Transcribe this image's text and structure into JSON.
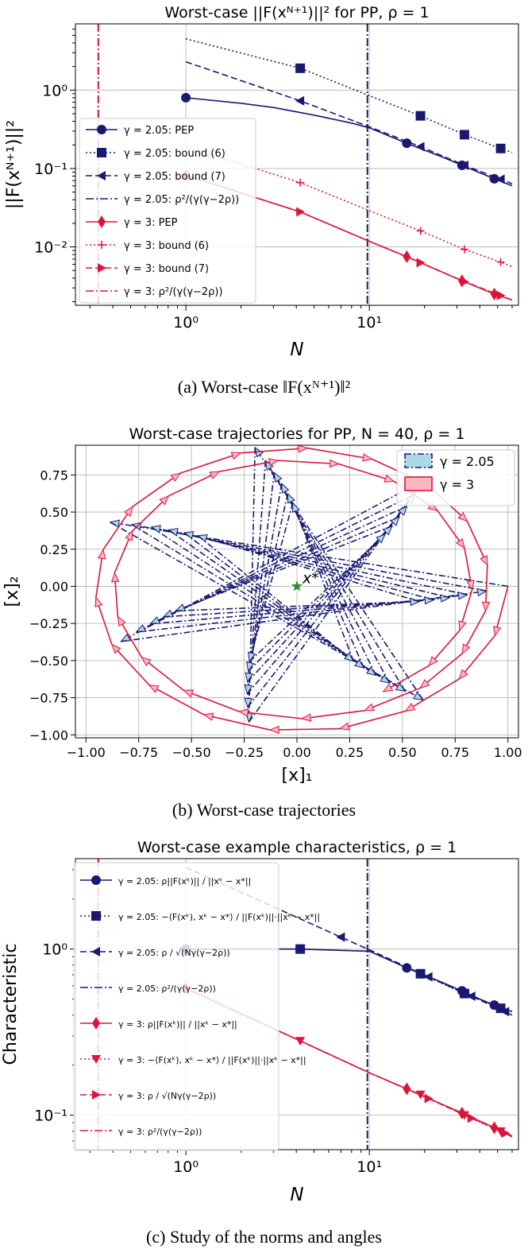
{
  "figures": [
    {
      "caption": "(a) Worst-case ||F(x^{N+1})||^2",
      "caption_display": "(a) Worst-case ‖F(xᴺ⁺¹)‖²",
      "chart_data": {
        "type": "line",
        "title": "Worst-case ||F(x^{N+1})||^2 for PP, ρ = 1",
        "title_display": "Worst-case ||F(xᴺ⁺¹)||² for PP, ρ = 1",
        "xlabel": "N",
        "ylabel": "||F(x^{N+1})||^2",
        "ylabel_display": "||F(xᴺ⁺¹)||²",
        "xscale": "log",
        "yscale": "log",
        "xlim": [
          0.25,
          65
        ],
        "ylim": [
          0.0018,
          7
        ],
        "xticks": [
          {
            "v": 1,
            "label": "10⁰"
          },
          {
            "v": 10,
            "label": "10¹"
          }
        ],
        "yticks": [
          {
            "v": 0.01,
            "label": "10⁻²"
          },
          {
            "v": 0.1,
            "label": "10⁻¹"
          },
          {
            "v": 1,
            "label": "10⁰"
          }
        ],
        "grid": true,
        "legend": "center-left",
        "series": [
          {
            "name": "γ = 2.05: PEP",
            "color": "#191970",
            "dash": "solid",
            "marker": "circle",
            "x": [
              1,
              2,
              3,
              5,
              8,
              10,
              16,
              25,
              32,
              40,
              48,
              60
            ],
            "y": [
              0.8,
              0.68,
              0.6,
              0.48,
              0.38,
              0.33,
              0.21,
              0.14,
              0.11,
              0.088,
              0.074,
              0.06
            ],
            "markers_at": [
              1,
              16,
              32,
              48
            ]
          },
          {
            "name": "γ = 2.05: bound (6)",
            "color": "#191970",
            "dash": "2,3",
            "marker": "square",
            "x": [
              1,
              4.2,
              10,
              19,
              33,
              52,
              60
            ],
            "y": [
              4.5,
              1.9,
              0.85,
              0.47,
              0.27,
              0.18,
              0.16
            ],
            "markers_at": [
              4.2,
              19,
              33,
              52
            ]
          },
          {
            "name": "γ = 2.05: bound (7)",
            "color": "#191970",
            "dash": "8,4",
            "marker": "triangle-left",
            "x": [
              1,
              4.2,
              10,
              19,
              33,
              52,
              60
            ],
            "y": [
              2.3,
              0.73,
              0.34,
              0.19,
              0.11,
              0.073,
              0.064
            ],
            "markers_at": [
              4.2,
              19,
              33,
              52
            ]
          },
          {
            "name": "γ = 3: PEP",
            "color": "#dc143c",
            "dash": "solid",
            "marker": "diamond",
            "x": [
              1,
              4.2,
              10,
              16,
              32,
              48,
              60
            ],
            "y": [
              0.082,
              0.028,
              0.0118,
              0.0075,
              0.0037,
              0.0025,
              0.0021
            ],
            "markers_at": [
              1,
              16,
              32,
              48
            ]
          },
          {
            "name": "γ = 3: bound (6)",
            "color": "#dc143c",
            "dash": "2,3",
            "marker": "plus",
            "x": [
              1,
              4.2,
              10,
              19,
              33,
              52,
              60
            ],
            "y": [
              0.19,
              0.066,
              0.029,
              0.016,
              0.0093,
              0.0064,
              0.0056
            ],
            "markers_at": [
              4.2,
              19,
              33,
              52
            ]
          },
          {
            "name": "γ = 3: bound (7)",
            "color": "#dc143c",
            "dash": "8,4",
            "marker": "triangle-right",
            "x": [
              1,
              4.2,
              10,
              19,
              33,
              52,
              60
            ],
            "y": [
              0.082,
              0.028,
              0.0118,
              0.0063,
              0.0036,
              0.0024,
              0.0021
            ],
            "markers_at": [
              4.2,
              19,
              33,
              52
            ]
          }
        ],
        "vlines": [
          {
            "name": "γ = 2.05: ρ²/(γ(γ−2ρ))",
            "x": 9.76,
            "color": "#191970",
            "dash": "10,3,2,3"
          },
          {
            "name": "γ = 3: ρ²/(γ(γ−2ρ))",
            "x": 0.333,
            "color": "#dc143c",
            "dash": "10,3,2,3"
          }
        ],
        "legend_entries": [
          {
            "label": "γ = 2.05: PEP",
            "color": "#191970",
            "dash": "solid",
            "marker": "circle"
          },
          {
            "label": "γ = 2.05: bound (6)",
            "color": "#191970",
            "dash": "2,3",
            "marker": "square"
          },
          {
            "label": "γ = 2.05: bound (7)",
            "color": "#191970",
            "dash": "8,4",
            "marker": "triangle-left"
          },
          {
            "label": "γ = 2.05: ρ²/(γ(γ−2ρ))",
            "color": "#191970",
            "dash": "10,3,2,3",
            "marker": "none"
          },
          {
            "label": "γ = 3: PEP",
            "color": "#dc143c",
            "dash": "solid",
            "marker": "diamond"
          },
          {
            "label": "γ = 3: bound (6)",
            "color": "#dc143c",
            "dash": "2,3",
            "marker": "plus"
          },
          {
            "label": "γ = 3: bound (7)",
            "color": "#dc143c",
            "dash": "8,4",
            "marker": "triangle-right"
          },
          {
            "label": "γ = 3: ρ²/(γ(γ−2ρ))",
            "color": "#dc143c",
            "dash": "10,3,2,3",
            "marker": "none"
          }
        ]
      }
    },
    {
      "caption": "(b) Worst-case trajectories",
      "caption_display": "(b) Worst-case trajectories",
      "chart_data": {
        "type": "line",
        "title": "Worst-case trajectories for PP, N = 40, ρ = 1",
        "title_display": "Worst-case trajectories for PP, N = 40, ρ = 1",
        "xlabel": "[x]₁",
        "ylabel": "[x]₂",
        "xscale": "linear",
        "yscale": "linear",
        "xlim": [
          -1.05,
          1.05
        ],
        "ylim": [
          -1.02,
          0.95
        ],
        "xticks": [
          {
            "v": -1,
            "label": "−1.00"
          },
          {
            "v": -0.75,
            "label": "−0.75"
          },
          {
            "v": -0.5,
            "label": "−0.50"
          },
          {
            "v": -0.25,
            "label": "−0.25"
          },
          {
            "v": 0,
            "label": "0.00"
          },
          {
            "v": 0.25,
            "label": "0.25"
          },
          {
            "v": 0.5,
            "label": "0.50"
          },
          {
            "v": 0.75,
            "label": "0.75"
          },
          {
            "v": 1,
            "label": "1.00"
          }
        ],
        "yticks": [
          {
            "v": -1,
            "label": "−1.00"
          },
          {
            "v": -0.75,
            "label": "−0.75"
          },
          {
            "v": -0.5,
            "label": "−0.50"
          },
          {
            "v": -0.25,
            "label": "−0.25"
          },
          {
            "v": 0,
            "label": "0.00"
          },
          {
            "v": 0.25,
            "label": "0.25"
          },
          {
            "v": 0.5,
            "label": "0.50"
          },
          {
            "v": 0.75,
            "label": "0.75"
          }
        ],
        "grid": true,
        "legend": "upper-right",
        "optimum": {
          "label": "x*",
          "x": 0,
          "y": 0
        },
        "series": [
          {
            "name": "γ = 2.05",
            "color": "#191970",
            "fill": "#add8e6",
            "dash": "8,3,2,3",
            "start": [
              1.0,
              0.0
            ],
            "radius_decay": 0.985,
            "angle_step_deg": 154,
            "steps": 40
          },
          {
            "name": "γ = 3",
            "color": "#dc143c",
            "fill": "#ffb6c1",
            "dash": "solid",
            "start": [
              1.0,
              0.0
            ],
            "radius_decay": 0.995,
            "angle_step_deg": -19.5,
            "steps": 40
          }
        ]
      }
    },
    {
      "caption": "(c) Study of the norms and angles",
      "caption_display": "(c) Study of the norms and angles",
      "chart_data": {
        "type": "line",
        "title": "Worst-case example characteristics, ρ = 1",
        "title_display": "Worst-case example characteristics, ρ = 1",
        "xlabel": "N",
        "ylabel": "Characteristic",
        "xscale": "log",
        "yscale": "log",
        "xlim": [
          0.25,
          65
        ],
        "ylim": [
          0.062,
          3.5
        ],
        "xticks": [
          {
            "v": 1,
            "label": "10⁰"
          },
          {
            "v": 10,
            "label": "10¹"
          }
        ],
        "yticks": [
          {
            "v": 0.1,
            "label": "10⁻¹"
          },
          {
            "v": 1,
            "label": "10⁰"
          }
        ],
        "grid": true,
        "legend": "center-left",
        "series": [
          {
            "name": "γ = 2.05: ρ||F(xᵏ)|| / ||xᵏ − x*||",
            "color": "#191970",
            "dash": "solid",
            "marker": "circle",
            "x": [
              1,
              4.2,
              10,
              16,
              25,
              32,
              40,
              48,
              60
            ],
            "y": [
              1.0,
              1.0,
              0.97,
              0.77,
              0.63,
              0.56,
              0.5,
              0.46,
              0.42
            ],
            "markers_at": [
              1,
              16,
              32,
              48
            ]
          },
          {
            "name": "γ = 2.05: −⟨F(xᵏ), xᵏ − x*⟩ / (||F(xᵏ)||·||xᵏ − x*||)",
            "color": "#191970",
            "dash": "2,3",
            "marker": "square",
            "x": [
              1,
              4.2,
              10,
              19,
              33,
              52,
              60
            ],
            "y": [
              1.0,
              1.0,
              0.97,
              0.71,
              0.54,
              0.44,
              0.42
            ],
            "markers_at": [
              4.2,
              19,
              33,
              52
            ]
          },
          {
            "name": "γ = 2.05: ρ / √(Nγ(γ−2ρ))",
            "color": "#191970",
            "dash": "8,4",
            "marker": "triangle-left",
            "x": [
              1,
              7,
              10,
              21,
              36,
              55,
              60
            ],
            "y": [
              3.1,
              1.18,
              0.99,
              0.68,
              0.52,
              0.42,
              0.4
            ],
            "markers_at": [
              7,
              21,
              36,
              55
            ]
          },
          {
            "name": "γ = 3: ρ||F(xᵏ)|| / ||xᵏ − x*||",
            "color": "#dc143c",
            "dash": "solid",
            "marker": "diamond",
            "x": [
              1,
              4.2,
              10,
              16,
              32,
              48,
              60
            ],
            "y": [
              0.58,
              0.28,
              0.18,
              0.144,
              0.103,
              0.084,
              0.075
            ],
            "markers_at": [
              1,
              16,
              32,
              48
            ]
          },
          {
            "name": "γ = 3: −⟨F(xᵏ), xᵏ − x*⟩ / (||F(xᵏ)||·||xᵏ − x*||)",
            "color": "#dc143c",
            "dash": "2,3",
            "marker": "triangle-down",
            "x": [
              1,
              4.2,
              10,
              19,
              33,
              52,
              60
            ],
            "y": [
              0.58,
              0.28,
              0.18,
              0.133,
              0.1,
              0.08,
              0.075
            ],
            "markers_at": [
              4.2,
              19,
              33,
              52
            ]
          },
          {
            "name": "γ = 3: ρ / √(Nγ(γ−2ρ))",
            "color": "#dc143c",
            "dash": "8,4",
            "marker": "triangle-right",
            "x": [
              1,
              4.2,
              10,
              21,
              36,
              55,
              60
            ],
            "y": [
              0.58,
              0.28,
              0.18,
              0.126,
              0.096,
              0.078,
              0.074
            ],
            "markers_at": [
              21,
              36,
              55
            ]
          }
        ],
        "vlines": [
          {
            "name": "γ = 2.05: ρ²/(γ(γ−2ρ))",
            "x": 9.76,
            "color": "#191970",
            "dash": "10,3,2,3"
          },
          {
            "name": "γ = 3: ρ²/(γ(γ−2ρ))",
            "x": 0.333,
            "color": "#dc143c",
            "dash": "10,3,2,3"
          }
        ],
        "legend_entries": [
          {
            "label": "γ = 2.05: ρ||F(xᵏ)|| / ||xᵏ − x*||",
            "color": "#191970",
            "dash": "solid",
            "marker": "circle"
          },
          {
            "label": "γ = 2.05: −⟨F(xᵏ), xᵏ − x*⟩ / ||F(xᵏ)||·||xᵏ − x*||",
            "color": "#191970",
            "dash": "2,3",
            "marker": "square"
          },
          {
            "label": "γ = 2.05: ρ / √(Nγ(γ−2ρ))",
            "color": "#191970",
            "dash": "8,4",
            "marker": "triangle-left"
          },
          {
            "label": "γ = 2.05: ρ²/(γ(γ−2ρ))",
            "color": "#191970",
            "dash": "10,3,2,3",
            "marker": "none"
          },
          {
            "label": "γ = 3: ρ||F(xᵏ)|| / ||xᵏ − x*||",
            "color": "#dc143c",
            "dash": "solid",
            "marker": "diamond"
          },
          {
            "label": "γ = 3: −⟨F(xᵏ), xᵏ − x*⟩ / ||F(xᵏ)||·||xᵏ − x*||",
            "color": "#dc143c",
            "dash": "2,3",
            "marker": "triangle-down"
          },
          {
            "label": "γ = 3: ρ / √(Nγ(γ−2ρ))",
            "color": "#dc143c",
            "dash": "8,4",
            "marker": "triangle-right"
          },
          {
            "label": "γ = 3: ρ²/(γ(γ−2ρ))",
            "color": "#dc143c",
            "dash": "10,3,2,3",
            "marker": "none"
          }
        ]
      }
    }
  ]
}
